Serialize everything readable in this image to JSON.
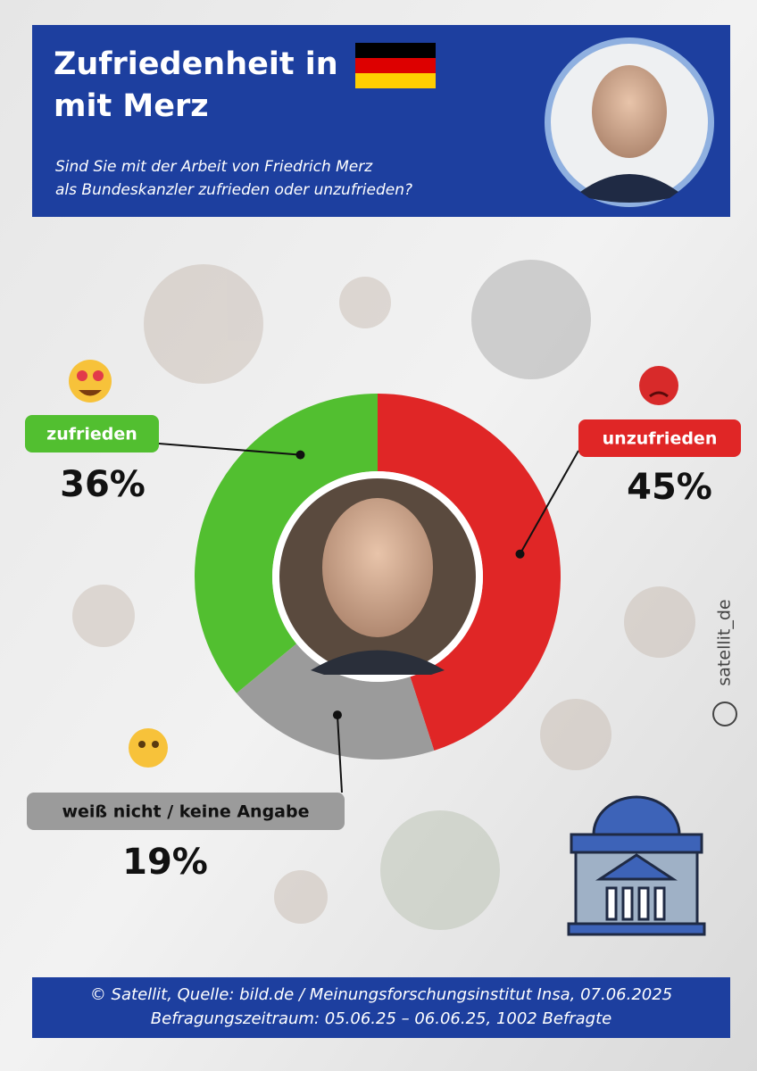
{
  "chart_data": {
    "type": "donut",
    "title_lines": [
      "Zufriedenheit in",
      "mit Merz"
    ],
    "subtitle_lines": [
      "Sind Sie mit der Arbeit von Friedrich Merz",
      "als Bundeskanzler zufrieden oder unzufrieden?"
    ],
    "categories": [
      "unzufrieden",
      "weiß nicht / keine Angabe",
      "zufrieden"
    ],
    "values": [
      45,
      19,
      36
    ],
    "value_labels": [
      "45%",
      "19%",
      "36%"
    ],
    "colors": [
      "#e02626",
      "#9b9b9b",
      "#52bf30"
    ],
    "watermark": "satellit_de",
    "footer_lines": [
      "© Satellit, Quelle: bild.de / Meinungsforschungsinstitut Insa, 07.06.2025",
      "Befragungszeitraum: 05.06.25 – 06.06.25, 1002 Befragte"
    ]
  }
}
